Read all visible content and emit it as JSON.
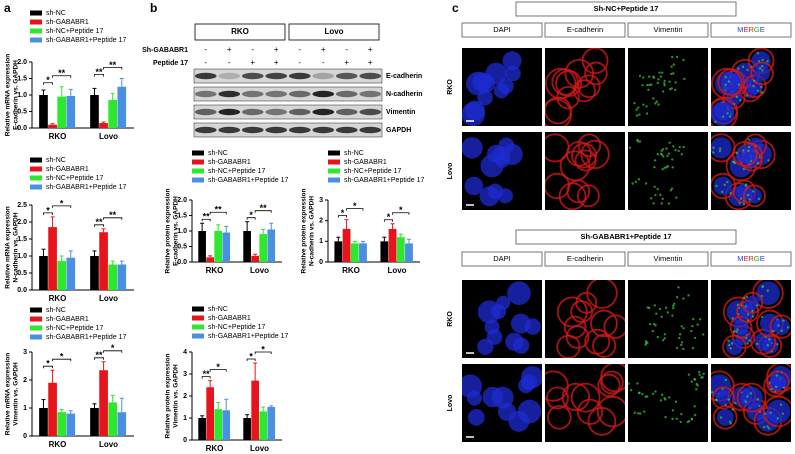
{
  "panel_labels": [
    "a",
    "b",
    "c"
  ],
  "chart_data": [
    {
      "type": "bar",
      "ylabel": [
        "Relative mRNA expression",
        "E-cadherin vs. GAPDH"
      ],
      "categories": [
        "RKO",
        "Lovo"
      ],
      "ylim": [
        0,
        2
      ],
      "yticks": [
        {
          "value": 0,
          "label": "0.0"
        },
        0.5,
        {
          "value": 1,
          "label": "1.0"
        },
        1.5,
        {
          "value": 2,
          "label": "2.0"
        }
      ],
      "series": [
        {
          "name": "sh-NC",
          "color": "#000000",
          "values": [
            1.0,
            1.0
          ],
          "errors": [
            0.15,
            0.2
          ]
        },
        {
          "name": "sh-GABABR1",
          "color": "#e8141b",
          "values": [
            0.1,
            0.15
          ],
          "errors": [
            0.03,
            0.03
          ]
        },
        {
          "name": "sh-NC+Peptide 17",
          "color": "#2ee82e",
          "values": [
            0.95,
            0.85
          ],
          "errors": [
            0.3,
            0.2
          ]
        },
        {
          "name": "sh-GABABR1+Peptide 17",
          "color": "#4a90e2",
          "values": [
            0.97,
            1.25
          ],
          "errors": [
            0.2,
            0.25
          ]
        }
      ],
      "annotations": [
        "*",
        "**",
        "**",
        "**"
      ]
    },
    {
      "type": "bar",
      "ylabel": [
        "Relative mRNA expression",
        "N-cadherin vs. GAPDH"
      ],
      "categories": [
        "RKO",
        "Lovo"
      ],
      "ylim": [
        0,
        2.5
      ],
      "yticks": [
        {
          "value": 0,
          "label": "0.0"
        },
        0.5,
        {
          "value": 1,
          "label": "1.0"
        },
        1.5,
        {
          "value": 2,
          "label": "2.0"
        },
        2.5
      ],
      "series": [
        {
          "name": "sh-NC",
          "color": "#000000",
          "values": [
            1.0,
            1.0
          ],
          "errors": [
            0.2,
            0.15
          ]
        },
        {
          "name": "sh-GABABR1",
          "color": "#e8141b",
          "values": [
            1.85,
            1.7
          ],
          "errors": [
            0.3,
            0.1
          ]
        },
        {
          "name": "sh-NC+Peptide 17",
          "color": "#2ee82e",
          "values": [
            0.85,
            0.75
          ],
          "errors": [
            0.15,
            0.1
          ]
        },
        {
          "name": "sh-GABABR1+Peptide 17",
          "color": "#4a90e2",
          "values": [
            0.95,
            0.75
          ],
          "errors": [
            0.2,
            0.1
          ]
        }
      ],
      "annotations": [
        "*",
        "*",
        "**",
        "**"
      ]
    },
    {
      "type": "bar",
      "ylabel": [
        "Relative mRNA expression",
        "Vimentin vs. GAPDH"
      ],
      "categories": [
        "RKO",
        "Lovo"
      ],
      "ylim": [
        0,
        3
      ],
      "yticks": [
        0,
        1,
        2,
        3
      ],
      "series": [
        {
          "name": "sh-NC",
          "color": "#000000",
          "values": [
            1.0,
            1.0
          ],
          "errors": [
            0.3,
            0.15
          ]
        },
        {
          "name": "sh-GABABR1",
          "color": "#e8141b",
          "values": [
            1.9,
            2.35
          ],
          "errors": [
            0.45,
            0.3
          ]
        },
        {
          "name": "sh-NC+Peptide 17",
          "color": "#2ee82e",
          "values": [
            0.85,
            1.2
          ],
          "errors": [
            0.1,
            0.25
          ]
        },
        {
          "name": "sh-GABABR1+Peptide 17",
          "color": "#4a90e2",
          "values": [
            0.8,
            0.85
          ],
          "errors": [
            0.1,
            0.5
          ]
        }
      ],
      "annotations": [
        "*",
        "*",
        "**",
        "*"
      ]
    },
    {
      "type": "bar",
      "ylabel": [
        "Relative protein expression",
        "E-cadherin vs. GAPDH"
      ],
      "categories": [
        "RKO",
        "Lovo"
      ],
      "ylim": [
        0,
        2
      ],
      "yticks": [
        {
          "value": 0,
          "label": "0.0"
        },
        0.5,
        {
          "value": 1,
          "label": "1.0"
        },
        1.5,
        {
          "value": 2,
          "label": "2.0"
        }
      ],
      "series": [
        {
          "name": "sh-NC",
          "color": "#000000",
          "values": [
            1.0,
            1.0
          ],
          "errors": [
            0.25,
            0.3
          ]
        },
        {
          "name": "sh-GABABR1",
          "color": "#e8141b",
          "values": [
            0.15,
            0.2
          ],
          "errors": [
            0.05,
            0.05
          ]
        },
        {
          "name": "sh-NC+Peptide 17",
          "color": "#2ee82e",
          "values": [
            1.0,
            0.9
          ],
          "errors": [
            0.2,
            0.15
          ]
        },
        {
          "name": "sh-GABABR1+Peptide 17",
          "color": "#4a90e2",
          "values": [
            0.95,
            1.05
          ],
          "errors": [
            0.2,
            0.2
          ]
        }
      ],
      "annotations": [
        "**",
        "**",
        "*",
        "**"
      ]
    },
    {
      "type": "bar",
      "ylabel": [
        "Relative protein expression",
        "N-cadherin vs. GAPDH"
      ],
      "categories": [
        "RKO",
        "Lovo"
      ],
      "ylim": [
        0,
        3
      ],
      "yticks": [
        0,
        1,
        2,
        3
      ],
      "series": [
        {
          "name": "sh-NC",
          "color": "#000000",
          "values": [
            1.0,
            1.0
          ],
          "errors": [
            0.2,
            0.2
          ]
        },
        {
          "name": "sh-GABABR1",
          "color": "#e8141b",
          "values": [
            1.6,
            1.6
          ],
          "errors": [
            0.45,
            0.25
          ]
        },
        {
          "name": "sh-NC+Peptide 17",
          "color": "#2ee82e",
          "values": [
            0.9,
            1.2
          ],
          "errors": [
            0.1,
            0.15
          ]
        },
        {
          "name": "sh-GABABR1+Peptide 17",
          "color": "#4a90e2",
          "values": [
            0.9,
            0.9
          ],
          "errors": [
            0.1,
            0.2
          ]
        }
      ],
      "annotations": [
        "*",
        "*",
        "*",
        "*"
      ]
    },
    {
      "type": "bar",
      "ylabel": [
        "Relative protein expression",
        "Vimentin vs. GAPDH"
      ],
      "categories": [
        "RKO",
        "Lovo"
      ],
      "ylim": [
        0,
        4
      ],
      "yticks": [
        0,
        1,
        2,
        3,
        4
      ],
      "series": [
        {
          "name": "sh-NC",
          "color": "#000000",
          "values": [
            1.0,
            1.0
          ],
          "errors": [
            0.1,
            0.15
          ]
        },
        {
          "name": "sh-GABABR1",
          "color": "#e8141b",
          "values": [
            2.4,
            2.7
          ],
          "errors": [
            0.3,
            0.8
          ]
        },
        {
          "name": "sh-NC+Peptide 17",
          "color": "#2ee82e",
          "values": [
            1.4,
            1.3
          ],
          "errors": [
            0.3,
            0.2
          ]
        },
        {
          "name": "sh-GABABR1+Peptide 17",
          "color": "#4a90e2",
          "values": [
            1.35,
            1.5
          ],
          "errors": [
            0.5,
            0.05
          ]
        }
      ],
      "annotations": [
        "**",
        "*",
        "*",
        "*"
      ]
    }
  ],
  "blot": {
    "groups": [
      "RKO",
      "Lovo"
    ],
    "rows": [
      {
        "label": "Sh-GABABR1",
        "marks": [
          "-",
          "+",
          "-",
          "+",
          "-",
          "+",
          "-",
          "+"
        ]
      },
      {
        "label": "Peptide 17",
        "marks": [
          "-",
          "-",
          "+",
          "+",
          "-",
          "-",
          "+",
          "+"
        ]
      }
    ],
    "bands": [
      "E-cadherin",
      "N-cadherin",
      "Vimentin",
      "GAPDH"
    ]
  },
  "microscopy": [
    {
      "title": "Sh-NC+Peptide 17",
      "channels": [
        "DAPI",
        "E-cadherin",
        "Vimentin",
        "MERGE"
      ],
      "rows": [
        "RKO",
        "Lovo"
      ]
    },
    {
      "title": "Sh-GABABR1+Peptide 17",
      "channels": [
        "DAPI",
        "E-cadherin",
        "Vimentin",
        "MERGE"
      ],
      "rows": [
        "RKO",
        "Lovo"
      ]
    }
  ]
}
